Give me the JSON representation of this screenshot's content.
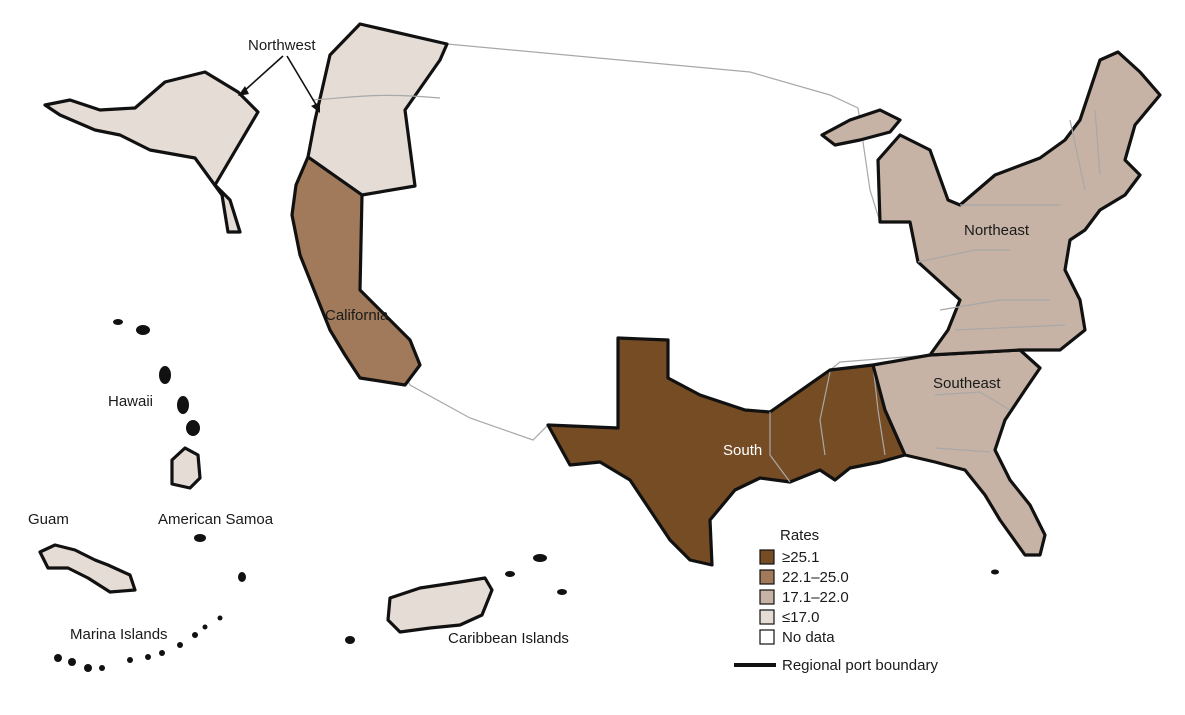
{
  "colors": {
    "rate_25_1_plus": "#754c24",
    "rate_22_1_25_0": "#a07a5a",
    "rate_17_1_22_0": "#c6b3a5",
    "rate_le_17_0": "#e6dcd6",
    "no_data": "#ffffff",
    "boundary": "#111111",
    "state_line": "#a8a8a8"
  },
  "labels": {
    "northwest": "Northwest",
    "california": "California",
    "south": "South",
    "southeast": "Southeast",
    "northeast": "Northeast",
    "hawaii": "Hawaii",
    "guam": "Guam",
    "american_samoa": "American Samoa",
    "marina_islands": "Marina Islands",
    "caribbean_islands": "Caribbean Islands"
  },
  "legend": {
    "title": "Rates",
    "items": [
      {
        "label": "≥25.1",
        "color": "#754c24"
      },
      {
        "label": "22.1–25.0",
        "color": "#a07a5a"
      },
      {
        "label": "17.1–22.0",
        "color": "#c6b3a5"
      },
      {
        "label": "≤17.0",
        "color": "#e6dcd6"
      },
      {
        "label": "No data",
        "color": "#ffffff"
      }
    ],
    "boundary_label": "Regional port boundary"
  },
  "regions": [
    {
      "name": "Northwest",
      "rate_class": "≤17.0"
    },
    {
      "name": "California",
      "rate_class": "22.1–25.0"
    },
    {
      "name": "South",
      "rate_class": "≥25.1"
    },
    {
      "name": "Southeast",
      "rate_class": "17.1–22.0"
    },
    {
      "name": "Northeast",
      "rate_class": "17.1–22.0"
    }
  ]
}
